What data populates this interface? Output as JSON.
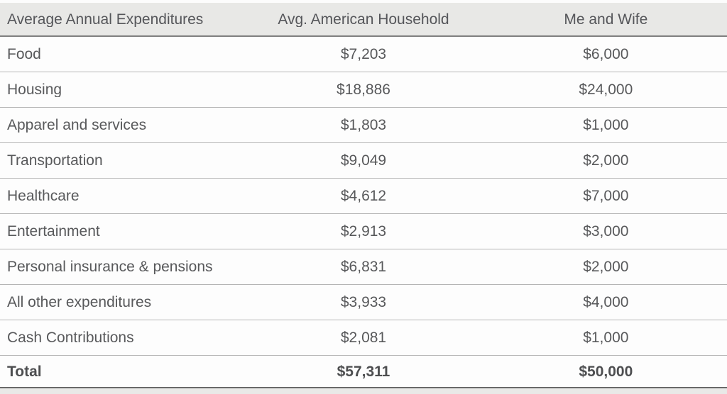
{
  "table": {
    "columns": [
      {
        "label": "Average Annual Expenditures"
      },
      {
        "label": "Avg. American Household"
      },
      {
        "label": "Me and Wife"
      }
    ],
    "rows": [
      {
        "category": "Food",
        "avg_household": "$7,203",
        "me_and_wife": "$6,000"
      },
      {
        "category": "Housing",
        "avg_household": "$18,886",
        "me_and_wife": "$24,000"
      },
      {
        "category": "Apparel and services",
        "avg_household": "$1,803",
        "me_and_wife": "$1,000"
      },
      {
        "category": "Transportation",
        "avg_household": "$9,049",
        "me_and_wife": "$2,000"
      },
      {
        "category": "Healthcare",
        "avg_household": "$4,612",
        "me_and_wife": "$7,000"
      },
      {
        "category": "Entertainment",
        "avg_household": "$2,913",
        "me_and_wife": "$3,000"
      },
      {
        "category": "Personal insurance & pensions",
        "avg_household": "$6,831",
        "me_and_wife": "$2,000"
      },
      {
        "category": "All other expenditures",
        "avg_household": "$3,933",
        "me_and_wife": "$4,000"
      },
      {
        "category": "Cash Contributions",
        "avg_household": "$2,081",
        "me_and_wife": "$1,000"
      }
    ],
    "total_row": {
      "category": "Total",
      "avg_household": "$57,311",
      "me_and_wife": "$50,000"
    }
  },
  "chart_data": {
    "type": "table",
    "title": "Average Annual Expenditures",
    "categories": [
      "Food",
      "Housing",
      "Apparel and services",
      "Transportation",
      "Healthcare",
      "Entertainment",
      "Personal insurance & pensions",
      "All other expenditures",
      "Cash Contributions",
      "Total"
    ],
    "series": [
      {
        "name": "Avg. American Household",
        "values": [
          7203,
          18886,
          1803,
          9049,
          4612,
          2913,
          6831,
          3933,
          2081,
          57311
        ]
      },
      {
        "name": "Me and Wife",
        "values": [
          6000,
          24000,
          1000,
          2000,
          7000,
          3000,
          2000,
          4000,
          1000,
          50000
        ]
      }
    ]
  },
  "colors": {
    "header_background": "#e8e8e6",
    "body_background": "#fdfdfd",
    "text": "#58595b",
    "row_divider": "#b5b5b5",
    "header_underline": "#7f7f7f",
    "bottom_border": "#696969"
  }
}
